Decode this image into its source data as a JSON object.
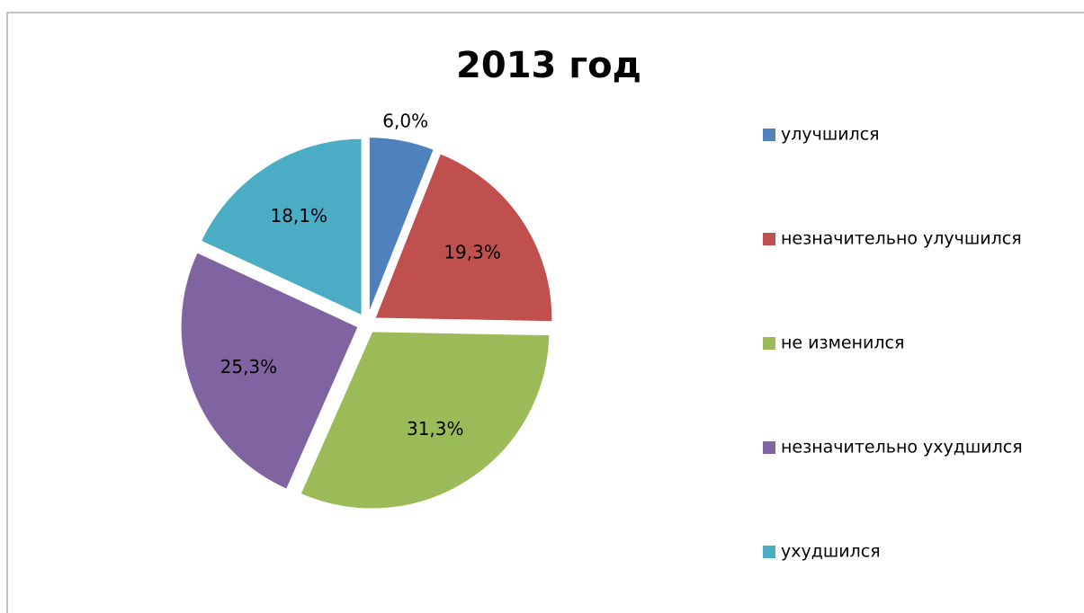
{
  "chart_data": {
    "type": "pie",
    "title": "2013 год",
    "categories": [
      "улучшился",
      "незначительно улучшился",
      "не изменился",
      "незначительно ухудшился",
      "ухудшился"
    ],
    "values": [
      6.0,
      19.3,
      31.3,
      25.3,
      18.1
    ],
    "value_labels": [
      "6,0%",
      "19,3%",
      "31,3%",
      "25,3%",
      "18,1%"
    ],
    "colors": [
      "#4f81bd",
      "#c0504d",
      "#9bbb59",
      "#8064a2",
      "#4bacc6"
    ],
    "legend": "right"
  }
}
